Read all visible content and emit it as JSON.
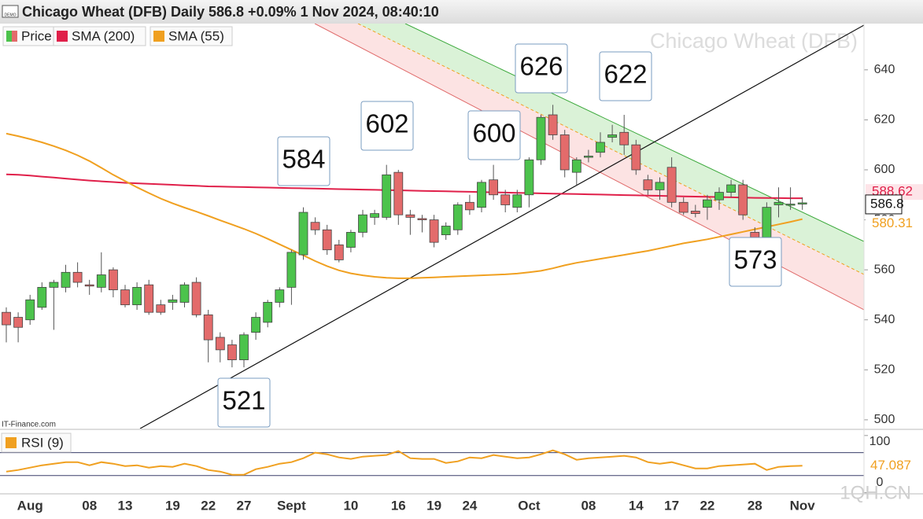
{
  "chart_data": {
    "type": "candlestick",
    "demo_badge": "DEMO",
    "title": "Chicago Wheat (DFB) Daily 586.8 +0.09% 1 Nov 2024, 08:40:10",
    "watermark": "Chicago Wheat (DFB)",
    "source": "IT-Finance.com",
    "site_watermark": "1QH.CN",
    "categories": [
      null,
      null,
      "Aug",
      null,
      null,
      null,
      null,
      "08",
      null,
      null,
      "13",
      null,
      null,
      null,
      "19",
      null,
      null,
      "22",
      null,
      null,
      "27",
      null,
      null,
      null,
      "Sept",
      null,
      null,
      null,
      null,
      "10",
      null,
      null,
      null,
      "16",
      null,
      null,
      "19",
      null,
      null,
      "24",
      null,
      null,
      null,
      null,
      "Oct",
      null,
      null,
      null,
      null,
      "08",
      null,
      null,
      null,
      "14",
      null,
      null,
      "17",
      null,
      null,
      "22",
      null,
      null,
      null,
      "28",
      null,
      null,
      null,
      "Nov"
    ],
    "series": [
      {
        "name": "Price",
        "type": "candlestick",
        "up_color": "#4cc34c",
        "down_color": "#e36b6b",
        "open": [
          543,
          541,
          540,
          545,
          553,
          553,
          559,
          554,
          553,
          560,
          552,
          546,
          554,
          546,
          547,
          547,
          555,
          542,
          533,
          530,
          524,
          535,
          539,
          547,
          553,
          566,
          579,
          576,
          570,
          569,
          575,
          581,
          581,
          599,
          582,
          580.5,
          580,
          574,
          576,
          587,
          585,
          596,
          590,
          585,
          590,
          604,
          622,
          614,
          599,
          605,
          607,
          613,
          615,
          610,
          596,
          592,
          601,
          587,
          583.5,
          585,
          588,
          591,
          594,
          575,
          573,
          586,
          586,
          586.3
        ],
        "high": [
          545,
          543,
          550,
          555,
          556,
          562,
          563,
          556,
          567,
          561,
          554,
          555,
          556,
          548,
          550,
          555,
          557,
          544,
          535,
          532,
          535,
          543,
          548,
          553,
          568,
          585,
          581,
          578,
          572,
          576,
          584,
          584,
          602,
          600,
          584,
          582,
          582,
          579,
          587,
          590,
          596,
          602,
          592,
          592,
          605,
          622,
          626,
          616,
          605,
          608,
          615,
          618,
          622,
          612,
          598,
          597,
          605,
          589,
          586,
          590,
          593,
          596,
          596,
          577,
          587,
          593,
          593,
          589
        ],
        "low": [
          531,
          531,
          538,
          544,
          536,
          551,
          553,
          550,
          551,
          549,
          545,
          544,
          542,
          542,
          544,
          545,
          541,
          523,
          523,
          521,
          521,
          532,
          537,
          545,
          546,
          564,
          574,
          566,
          563,
          567,
          573,
          578,
          580,
          578,
          574,
          575,
          569,
          572,
          574,
          582,
          583,
          588,
          583,
          583,
          585,
          602,
          612,
          597,
          594,
          603,
          605,
          611,
          606,
          598,
          590,
          588,
          585,
          582,
          581,
          580,
          584,
          589,
          580,
          572,
          572,
          581,
          584,
          584
        ],
        "close": [
          538,
          537,
          548,
          553,
          555,
          559,
          555,
          553.5,
          558,
          552,
          546,
          553,
          543,
          543,
          548,
          554,
          542,
          532,
          528,
          524,
          534,
          541,
          547,
          552,
          567,
          583,
          576,
          568,
          564,
          575,
          582,
          582.5,
          598,
          582,
          581,
          580,
          571,
          577.5,
          586,
          584,
          595,
          590,
          586,
          590,
          604,
          621,
          614,
          600,
          604,
          605.5,
          611,
          614,
          610,
          600,
          592,
          595,
          587,
          583,
          582.5,
          588,
          591,
          594,
          582,
          573,
          585,
          587,
          586.3,
          586.8
        ]
      },
      {
        "name": "SMA (200)",
        "type": "line",
        "color": "#e0204a",
        "tag_fill": "#fde4e8",
        "values": [
          598.2,
          598.0,
          597.7,
          597.3,
          596.9,
          596.5,
          596.1,
          595.7,
          595.4,
          595.1,
          594.8,
          594.6,
          594.4,
          594.2,
          594.0,
          593.8,
          593.6,
          593.4,
          593.3,
          593.2,
          593.1,
          593.0,
          592.9,
          592.8,
          592.7,
          592.6,
          592.5,
          592.4,
          592.3,
          592.2,
          592.1,
          592.0,
          591.9,
          591.8,
          591.7,
          591.6,
          591.5,
          591.4,
          591.3,
          591.2,
          591.1,
          591.0,
          590.9,
          590.8,
          590.7,
          590.6,
          590.5,
          590.4,
          590.3,
          590.2,
          590.1,
          590.0,
          589.9,
          589.8,
          589.7,
          589.6,
          589.5,
          589.4,
          589.3,
          589.2,
          589.1,
          589.0,
          588.9,
          588.8,
          588.75,
          588.7,
          588.65,
          588.62
        ]
      },
      {
        "name": "SMA (55)",
        "type": "line",
        "color": "#f0a020",
        "tag_fill": "#ffffff",
        "values": [
          614.5,
          613.5,
          612.3,
          611,
          609.5,
          607.8,
          605.8,
          603.5,
          600.8,
          598,
          595.5,
          593,
          590.7,
          588.5,
          586.6,
          584.9,
          583.3,
          581.6,
          579.8,
          578.1,
          576.4,
          574.5,
          572.4,
          570.2,
          568,
          565.8,
          563.5,
          561.5,
          559.8,
          558.6,
          557.8,
          557.2,
          556.8,
          556.6,
          556.6,
          556.8,
          557,
          557.2,
          557.4,
          557.6,
          557.8,
          558,
          558.2,
          558.5,
          559,
          559.6,
          560.6,
          561.8,
          562.8,
          563.6,
          564.4,
          565.2,
          566,
          566.8,
          567.6,
          568.6,
          569.6,
          570.6,
          571.4,
          572.2,
          573.2,
          574.2,
          575.2,
          576.2,
          577.2,
          578.2,
          579.2,
          580.31
        ]
      }
    ],
    "ylim": [
      496.5,
      658.5
    ],
    "yticks": [
      500,
      520,
      540,
      560,
      580,
      600,
      620,
      640
    ],
    "annotations": [
      521,
      584,
      602,
      600,
      626,
      622,
      573
    ],
    "rsi": {
      "name": "RSI (9)",
      "color": "#f0a020",
      "values": [
        36.9,
        39.7,
        43.8,
        47.9,
        50.7,
        53.4,
        53.4,
        47.9,
        53.4,
        50.7,
        46.6,
        47.9,
        43.8,
        46.6,
        45.2,
        50.7,
        46.6,
        39.7,
        36.9,
        31.4,
        31.4,
        41,
        45.2,
        50.7,
        53.4,
        60.3,
        70,
        67.2,
        61.7,
        59,
        63.1,
        64.5,
        65.9,
        72.8,
        60.3,
        59,
        59,
        52.1,
        54.8,
        61.7,
        60.3,
        65.9,
        63.1,
        60.3,
        61.7,
        67.2,
        74.1,
        67.2,
        57.6,
        60.3,
        61.7,
        63.1,
        64.5,
        61.7,
        53.4,
        50.7,
        53.4,
        47.9,
        42.4,
        42.4,
        46.6,
        47.9,
        49.3,
        50.7,
        39.7,
        45.2,
        46.6,
        47.087
      ],
      "ylim": [
        -2,
        108
      ],
      "yticks": [
        0,
        100
      ],
      "levels": [
        70,
        30
      ]
    }
  }
}
